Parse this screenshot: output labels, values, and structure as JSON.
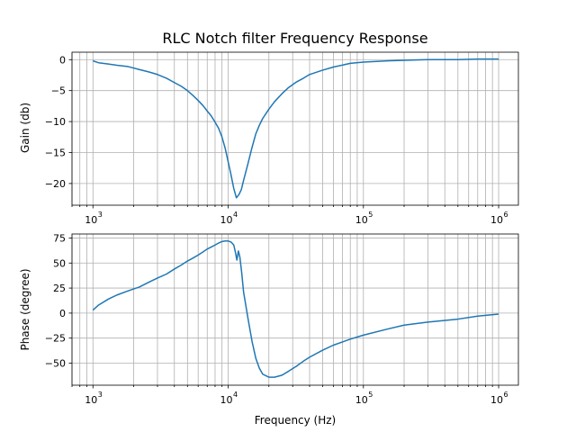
{
  "chart_data": [
    {
      "type": "line",
      "title": "RLC Notch filter Frequency Response",
      "xlabel": "",
      "ylabel": "Gain (db)",
      "xscale": "log",
      "xlim": [
        700,
        1400000
      ],
      "ylim": [
        -23.5,
        1.2
      ],
      "xticks": [
        1000,
        10000,
        100000,
        1000000
      ],
      "yticks": [
        0,
        -5,
        -10,
        -15,
        -20
      ],
      "grid": true,
      "x": [
        1000,
        1100,
        1300,
        1500,
        1800,
        2200,
        2600,
        3000,
        3500,
        4000,
        4500,
        5000,
        5500,
        6000,
        6500,
        7000,
        7500,
        8000,
        8500,
        9000,
        9500,
        10000,
        10500,
        11000,
        11500,
        12000,
        12500,
        13000,
        14000,
        15000,
        16000,
        17000,
        18000,
        20000,
        22000,
        25000,
        28000,
        32000,
        36000,
        40000,
        50000,
        60000,
        80000,
        100000,
        150000,
        200000,
        300000,
        500000,
        700000,
        1000000
      ],
      "series": [
        {
          "values": [
            -0.2,
            -0.5,
            -0.7,
            -0.9,
            -1.1,
            -1.6,
            -2.0,
            -2.4,
            -3.0,
            -3.7,
            -4.3,
            -5.0,
            -5.8,
            -6.6,
            -7.4,
            -8.3,
            -9.1,
            -10.1,
            -11.1,
            -12.5,
            -14.3,
            -16.5,
            -18.6,
            -20.8,
            -22.3,
            -21.8,
            -21.0,
            -19.5,
            -16.8,
            -14.2,
            -12.0,
            -10.6,
            -9.5,
            -8.0,
            -6.8,
            -5.5,
            -4.5,
            -3.6,
            -3.0,
            -2.4,
            -1.7,
            -1.2,
            -0.6,
            -0.4,
            -0.2,
            -0.1,
            0.0,
            0.0,
            0.1,
            0.1
          ]
        }
      ]
    },
    {
      "type": "line",
      "title": "",
      "xlabel": "Frequency (Hz)",
      "ylabel": "Phase (degree)",
      "xscale": "log",
      "xlim": [
        700,
        1400000
      ],
      "ylim": [
        -72,
        79
      ],
      "xticks": [
        1000,
        10000,
        100000,
        1000000
      ],
      "yticks": [
        75,
        50,
        25,
        0,
        -25,
        -50
      ],
      "grid": true,
      "x": [
        1000,
        1100,
        1300,
        1500,
        1800,
        2200,
        2600,
        3000,
        3500,
        4000,
        4500,
        5000,
        5500,
        6000,
        6500,
        7000,
        7500,
        8000,
        8500,
        9000,
        9500,
        10000,
        10500,
        11000,
        11300,
        11600,
        11900,
        12200,
        12600,
        13000,
        14000,
        15000,
        16000,
        17000,
        18000,
        20000,
        22000,
        25000,
        28000,
        32000,
        36000,
        40000,
        50000,
        60000,
        80000,
        100000,
        150000,
        200000,
        300000,
        500000,
        700000,
        1000000
      ],
      "series": [
        {
          "values": [
            3,
            8,
            14,
            18,
            22,
            26,
            31,
            35,
            39,
            44,
            48,
            52,
            55,
            58,
            61,
            64,
            66,
            68,
            70,
            71.5,
            72,
            72,
            71,
            68,
            61,
            53,
            62,
            56,
            40,
            21,
            -5,
            -28,
            -45,
            -55,
            -61,
            -64,
            -64,
            -62,
            -58,
            -53,
            -48,
            -44,
            -37,
            -32,
            -26,
            -22,
            -16,
            -12,
            -9,
            -6,
            -3,
            -1
          ]
        }
      ]
    }
  ]
}
